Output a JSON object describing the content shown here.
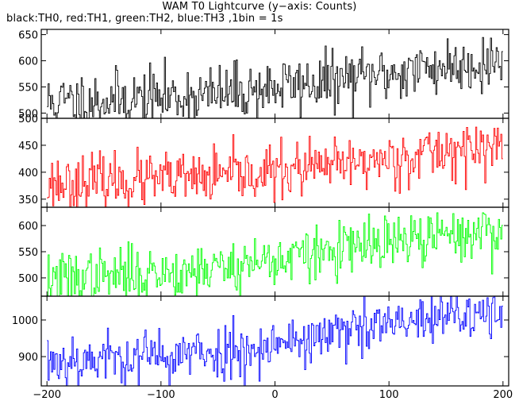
{
  "header": {
    "title": "WAM T0 Lightcurve (y−axis: Counts)",
    "subtitle": "black:TH0, red:TH1, green:TH2, blue:TH3 ,1bin = 1s"
  },
  "chart_data": [
    {
      "type": "line",
      "name": "TH0",
      "color": "#000000",
      "xlim": [
        -205,
        205
      ],
      "ylim": [
        490,
        660
      ],
      "yticks": [
        500,
        550,
        600,
        650
      ],
      "trend": [
        [
          -200,
          520
        ],
        [
          -100,
          530
        ],
        [
          -50,
          535
        ],
        [
          0,
          550
        ],
        [
          50,
          560
        ],
        [
          100,
          575
        ],
        [
          150,
          590
        ],
        [
          200,
          600
        ]
      ],
      "noise": 28,
      "seed": 11
    },
    {
      "type": "line",
      "name": "TH1",
      "color": "#ff0000",
      "xlim": [
        -205,
        205
      ],
      "ylim": [
        335,
        500
      ],
      "yticks": [
        350,
        400,
        450,
        500
      ],
      "trend": [
        [
          -200,
          380
        ],
        [
          -100,
          385
        ],
        [
          -50,
          390
        ],
        [
          0,
          400
        ],
        [
          50,
          410
        ],
        [
          100,
          425
        ],
        [
          150,
          440
        ],
        [
          200,
          445
        ]
      ],
      "noise": 25,
      "seed": 23
    },
    {
      "type": "line",
      "name": "TH2",
      "color": "#00ff00",
      "xlim": [
        -205,
        205
      ],
      "ylim": [
        465,
        635
      ],
      "yticks": [
        500,
        550,
        600
      ],
      "trend": [
        [
          -200,
          495
        ],
        [
          -100,
          510
        ],
        [
          -50,
          520
        ],
        [
          0,
          535
        ],
        [
          50,
          550
        ],
        [
          100,
          565
        ],
        [
          150,
          580
        ],
        [
          200,
          590
        ]
      ],
      "noise": 26,
      "seed": 37
    },
    {
      "type": "line",
      "name": "TH3",
      "color": "#0000ff",
      "xlim": [
        -205,
        205
      ],
      "ylim": [
        820,
        1065
      ],
      "yticks": [
        900,
        1000
      ],
      "trend": [
        [
          -200,
          890
        ],
        [
          -100,
          900
        ],
        [
          -50,
          910
        ],
        [
          0,
          935
        ],
        [
          50,
          960
        ],
        [
          100,
          985
        ],
        [
          150,
          1005
        ],
        [
          200,
          1020
        ]
      ],
      "noise": 38,
      "seed": 53
    }
  ],
  "x_axis": {
    "ticks": [
      -200,
      -100,
      0,
      100,
      200
    ],
    "tick_labels": [
      "−200",
      "−100",
      "0",
      "100",
      "200"
    ]
  }
}
